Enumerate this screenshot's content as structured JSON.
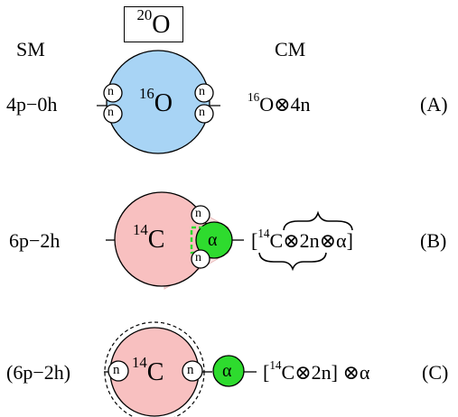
{
  "header": {
    "title_mass": "20",
    "title_element": "O",
    "shell_model_label": "SM",
    "cluster_model_label": "CM"
  },
  "rows": [
    {
      "tag": "(A)",
      "shell_config": "4p−0h",
      "core_mass": "16",
      "core_element": "O",
      "core_color": "#A8D4F5",
      "cm_prefix": "",
      "cm_mass": "16",
      "cm_formula": "O⊗4n",
      "nucleon_label": "n"
    },
    {
      "tag": "(B)",
      "shell_config": "6p−2h",
      "core_mass": "14",
      "core_element": "C",
      "core_color": "#F8C0C0",
      "cluster_label": "α",
      "cluster_color": "#2EDB2E",
      "cm_prefix": "[",
      "cm_mass": "14",
      "cm_formula": "C⊗2n⊗α]",
      "nucleon_label": "n"
    },
    {
      "tag": "(C)",
      "shell_config": "(6p−2h)",
      "core_mass": "14",
      "core_element": "C",
      "core_color": "#F8C0C0",
      "cluster_label": "α",
      "cluster_color": "#2EDB2E",
      "cm_prefix": "[",
      "cm_mass": "14",
      "cm_formula": "C⊗2n] ⊗α",
      "nucleon_label": "n"
    }
  ]
}
